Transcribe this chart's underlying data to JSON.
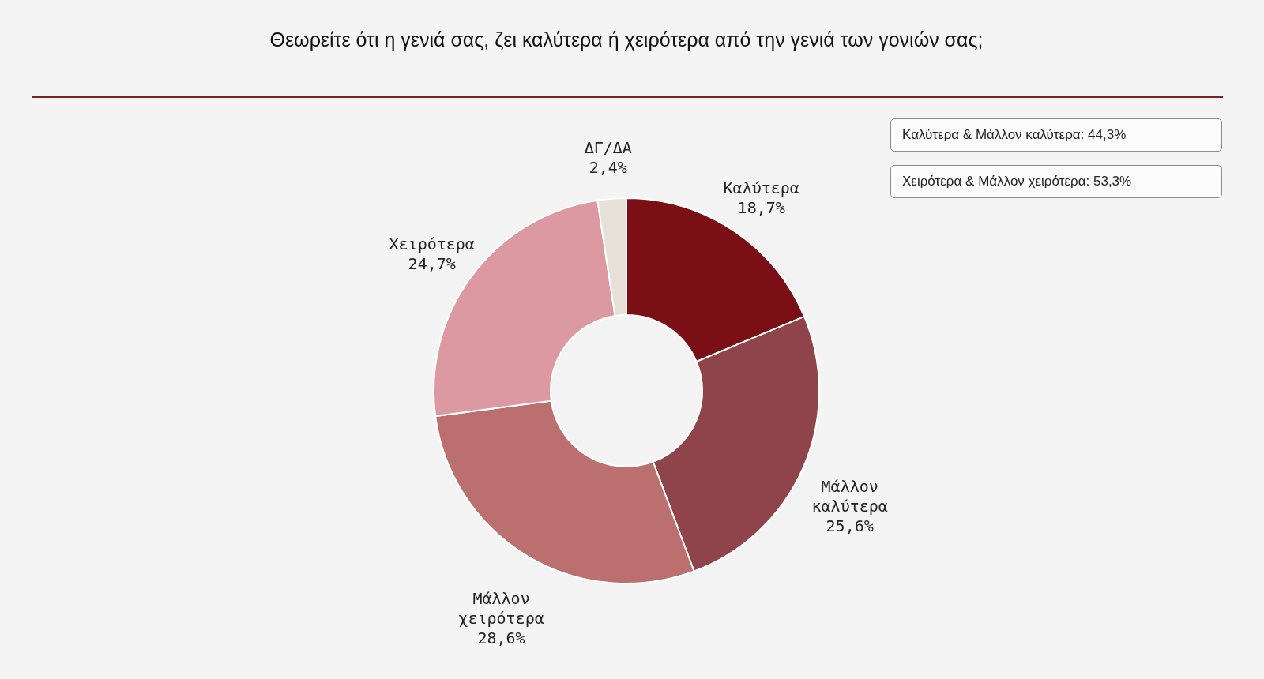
{
  "chart_data": {
    "type": "donut",
    "title": "Θεωρείτε ότι η γενιά σας, ζει καλύτερα ή χειρότερα από την γενιά των γονιών σας;",
    "categories": [
      "Καλύτερα",
      "Μάλλον καλύτερα",
      "Μάλλον χειρότερα",
      "Χειρότερα",
      "ΔΓ/ΔΑ"
    ],
    "values": [
      18.7,
      25.6,
      28.6,
      24.7,
      2.4
    ],
    "colors": [
      "#7a1016",
      "#8f434a",
      "#bb6f6f",
      "#dc99a1",
      "#e7e0d8"
    ],
    "value_labels": [
      "18,7%",
      "25,6%",
      "28,6%",
      "24,7%",
      "2,4%"
    ],
    "annotations": [
      "Καλύτερα & Μάλλον καλύτερα: 44,3%",
      "Χειρότερα & Μάλλον χειρότερα: 53,3%"
    ]
  }
}
